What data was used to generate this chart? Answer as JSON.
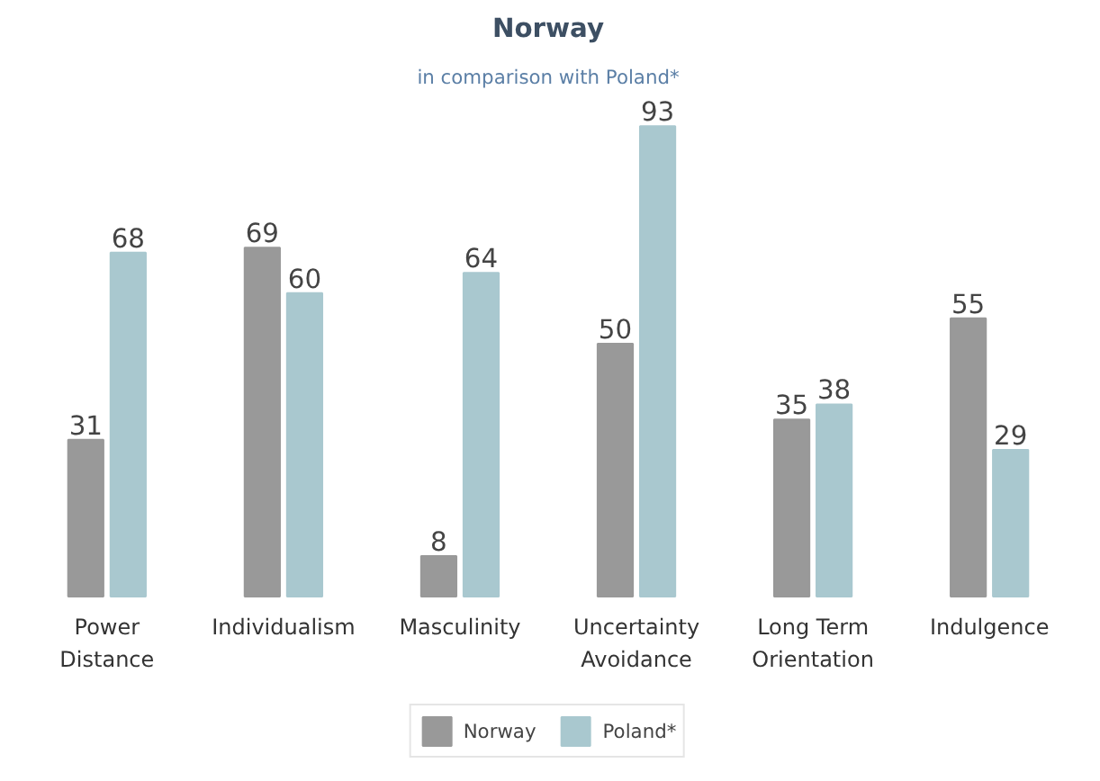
{
  "chart_data": {
    "type": "bar",
    "title": "Norway",
    "subtitle": "in comparison with Poland*",
    "categories": [
      "Power\nDistance",
      "Individualism",
      "Masculinity",
      "Uncertainty\nAvoidance",
      "Long Term\nOrientation",
      "Indulgence"
    ],
    "series": [
      {
        "name": "Norway",
        "color": "#999999",
        "values": [
          31,
          69,
          8,
          50,
          35,
          55
        ]
      },
      {
        "name": "Poland*",
        "color": "#a9c8cf",
        "values": [
          68,
          60,
          64,
          93,
          38,
          29
        ]
      }
    ],
    "data_labels": true,
    "grid": false,
    "legend": "bottom"
  }
}
